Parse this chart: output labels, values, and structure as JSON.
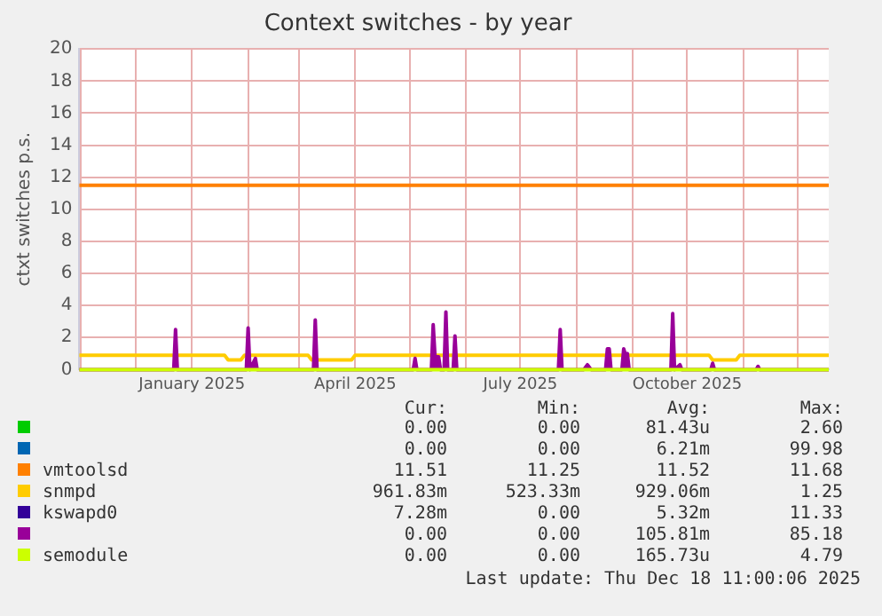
{
  "chart_data": {
    "type": "line",
    "title": "Context switches - by year",
    "ylabel": "ctxt switches p.s.",
    "xlim": [
      "2024-10-31",
      "2025-12-18"
    ],
    "xticks": [
      {
        "value": "2024-11-01",
        "label": null
      },
      {
        "value": "2024-12-01",
        "label": null
      },
      {
        "value": "2025-01-01",
        "label": "January 2025"
      },
      {
        "value": "2025-02-01",
        "label": null
      },
      {
        "value": "2025-03-01",
        "label": null
      },
      {
        "value": "2025-04-01",
        "label": "April 2025"
      },
      {
        "value": "2025-05-01",
        "label": null
      },
      {
        "value": "2025-06-01",
        "label": null
      },
      {
        "value": "2025-07-01",
        "label": "July 2025"
      },
      {
        "value": "2025-08-01",
        "label": null
      },
      {
        "value": "2025-09-01",
        "label": null
      },
      {
        "value": "2025-10-01",
        "label": "October 2025"
      },
      {
        "value": "2025-11-01",
        "label": null
      },
      {
        "value": "2025-12-01",
        "label": null
      }
    ],
    "ylim": [
      0,
      20
    ],
    "yticks": [
      0,
      2,
      4,
      6,
      8,
      10,
      12,
      14,
      16,
      18,
      20
    ],
    "grid": true,
    "legend": "bottom",
    "marker": "none",
    "series": [
      {
        "color": "#00cc00"
      },
      {
        "color": "#0066b3"
      },
      {
        "name": "vmtoolsd",
        "color": "#ff8000",
        "x": [
          "2024-10-31",
          "2025-12-18"
        ],
        "values": [
          11.5,
          11.5
        ]
      },
      {
        "name": "snmpd",
        "color": "#ffcc00",
        "x": [
          "2024-10-31",
          "2025-01-19",
          "2025-01-21",
          "2025-01-28",
          "2025-01-30",
          "2025-03-06",
          "2025-03-08",
          "2025-03-30",
          "2025-04-01",
          "2025-10-13",
          "2025-10-15",
          "2025-10-28",
          "2025-10-30",
          "2025-12-18"
        ],
        "values": [
          0.9,
          0.9,
          0.6,
          0.6,
          0.9,
          0.9,
          0.6,
          0.6,
          0.9,
          0.9,
          0.6,
          0.6,
          0.9,
          0.9
        ]
      },
      {
        "name": "kswapd0",
        "color": "#330099"
      },
      {
        "type": "area",
        "color": "#990099",
        "x": [
          "2024-10-31",
          "2024-12-22",
          "2024-12-23",
          "2024-12-24",
          "2025-01-31",
          "2025-02-01",
          "2025-02-02",
          "2025-02-05",
          "2025-02-06",
          "2025-03-09",
          "2025-03-10",
          "2025-03-11",
          "2025-05-03",
          "2025-05-04",
          "2025-05-05",
          "2025-05-13",
          "2025-05-14",
          "2025-05-15",
          "2025-05-17",
          "2025-05-18",
          "2025-05-20",
          "2025-05-21",
          "2025-05-22",
          "2025-05-25",
          "2025-05-26",
          "2025-05-27",
          "2025-07-22",
          "2025-07-23",
          "2025-07-24",
          "2025-08-05",
          "2025-08-07",
          "2025-08-09",
          "2025-08-17",
          "2025-08-18",
          "2025-08-19",
          "2025-08-20",
          "2025-08-26",
          "2025-08-27",
          "2025-08-28",
          "2025-08-29",
          "2025-08-30",
          "2025-09-22",
          "2025-09-23",
          "2025-09-24",
          "2025-09-27",
          "2025-09-28",
          "2025-10-14",
          "2025-10-15",
          "2025-10-16",
          "2025-11-08",
          "2025-11-09",
          "2025-11-10",
          "2025-12-18"
        ],
        "values": [
          0,
          0,
          2.5,
          0,
          0,
          2.6,
          0,
          0.7,
          0,
          0,
          3.1,
          0,
          0,
          0.7,
          0,
          0,
          2.8,
          0.8,
          0.8,
          0,
          0,
          3.6,
          0,
          0,
          2.1,
          0,
          0,
          2.5,
          0,
          0,
          0.3,
          0,
          0,
          1.3,
          1.3,
          0,
          0,
          1.3,
          0.9,
          1.0,
          0,
          0,
          3.5,
          0,
          0.3,
          0,
          0,
          0.4,
          0,
          0,
          0.2,
          0,
          0
        ]
      },
      {
        "name": "semodule",
        "color": "#ccff00",
        "x": [
          "2024-10-31",
          "2025-12-18"
        ],
        "values": [
          0,
          0
        ]
      }
    ],
    "annotations": [
      "Cur:",
      "Min:",
      "Avg:",
      "Max:",
      "0.00",
      "0.00",
      "81.43u",
      "2.60",
      "0.00",
      "0.00",
      "6.21m",
      "99.98",
      "11.51",
      "11.25",
      "11.52",
      "11.68",
      "961.83m",
      "523.33m",
      "929.06m",
      "1.25",
      "7.28m",
      "0.00",
      "5.32m",
      "11.33",
      "0.00",
      "0.00",
      "105.81m",
      "85.18",
      "0.00",
      "0.00",
      "165.73u",
      "4.79",
      "Last update: Thu Dec 18 11:00:06 2025"
    ]
  }
}
